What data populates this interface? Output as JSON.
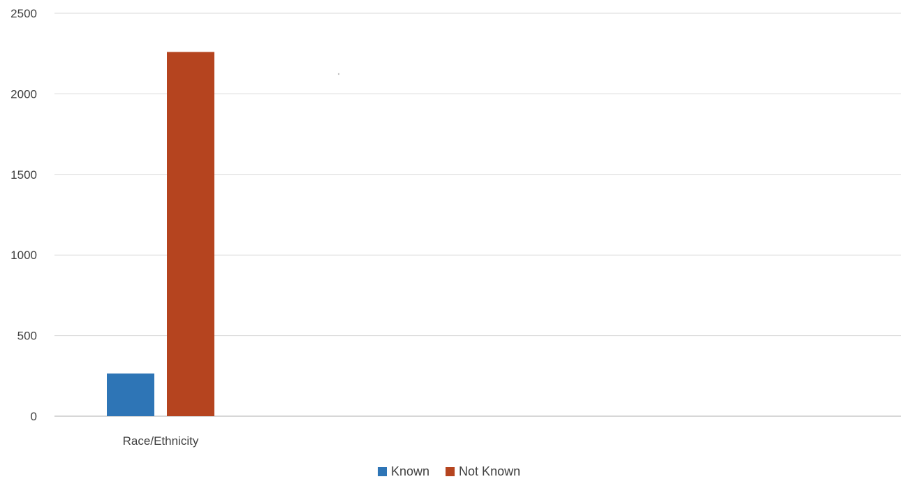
{
  "chart_data": {
    "type": "bar",
    "categories": [
      "Race/Ethnicity"
    ],
    "series": [
      {
        "name": "Known",
        "values": [
          265
        ],
        "color": "#2E75B6"
      },
      {
        "name": "Not Known",
        "values": [
          2260
        ],
        "color": "#B5441F"
      }
    ],
    "title": "",
    "xlabel": "",
    "ylabel": "",
    "ylim": [
      0,
      2500
    ],
    "yticks": [
      "0",
      "500",
      "1000",
      "1500",
      "2000",
      "2500"
    ],
    "grid": true,
    "legend_position": "bottom"
  }
}
